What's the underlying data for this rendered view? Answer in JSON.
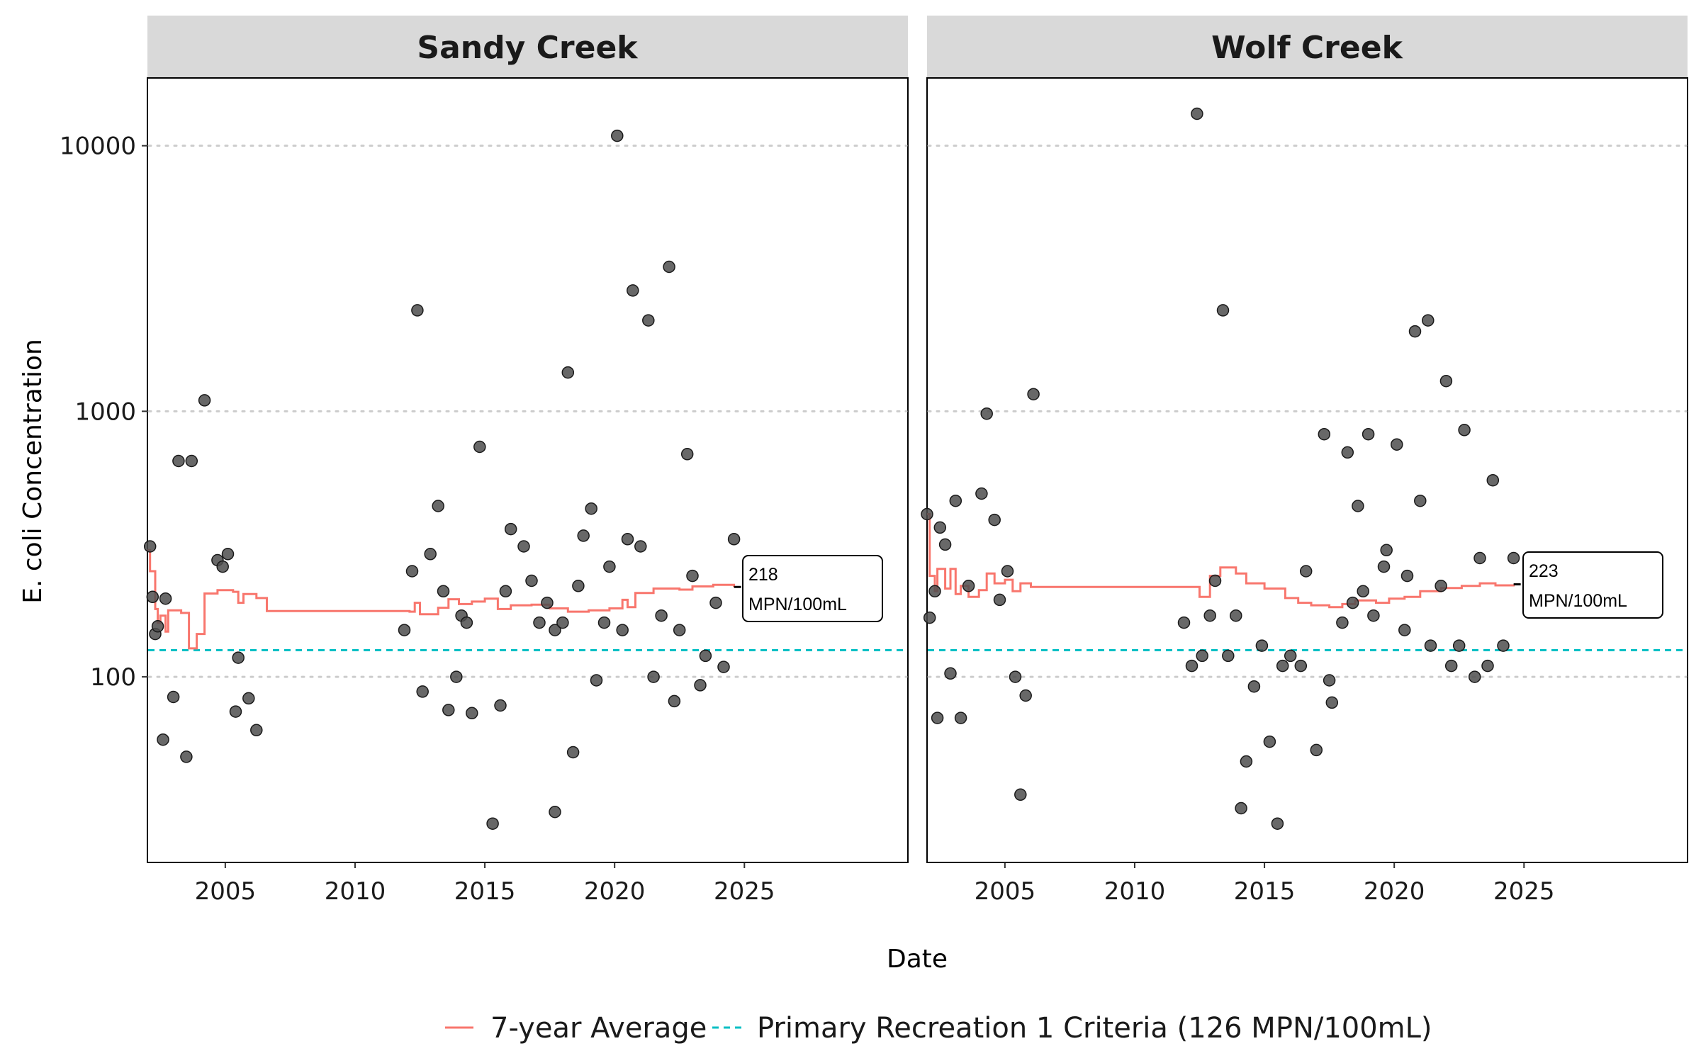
{
  "chart_data": {
    "type": "scatter",
    "xlabel": "Date",
    "ylabel": "E. coli Concentration",
    "y_scale": "log",
    "ylim": [
      20,
      18000
    ],
    "xlim": [
      2002.0,
      2031.3
    ],
    "x_ticks": [
      2005,
      2010,
      2015,
      2020,
      2025
    ],
    "y_ticks": [
      100,
      1000,
      10000
    ],
    "grid_y": true,
    "legend_position": "bottom",
    "legend": [
      {
        "label": "7-year Average",
        "style": "solid",
        "color": "#f8766d"
      },
      {
        "label": "Primary Recreation 1 Criteria (126 MPN/100mL)",
        "style": "dashed",
        "color": "#00bfc4"
      }
    ],
    "criteria_value": 126,
    "panels": [
      {
        "name": "Sandy Creek",
        "label_value": "218",
        "label_unit": "MPN/100mL",
        "label_date": 2024.6,
        "points": [
          [
            2002.1,
            310
          ],
          [
            2002.2,
            200
          ],
          [
            2002.3,
            145
          ],
          [
            2002.4,
            155
          ],
          [
            2002.6,
            58
          ],
          [
            2002.7,
            197
          ],
          [
            2003.0,
            84
          ],
          [
            2003.2,
            650
          ],
          [
            2003.5,
            50
          ],
          [
            2003.7,
            650
          ],
          [
            2004.2,
            1100
          ],
          [
            2004.7,
            275
          ],
          [
            2004.9,
            260
          ],
          [
            2005.1,
            290
          ],
          [
            2005.4,
            74
          ],
          [
            2005.5,
            118
          ],
          [
            2005.9,
            83
          ],
          [
            2006.2,
            63
          ],
          [
            2011.9,
            150
          ],
          [
            2012.2,
            250
          ],
          [
            2012.4,
            2400
          ],
          [
            2012.6,
            88
          ],
          [
            2012.9,
            290
          ],
          [
            2013.2,
            440
          ],
          [
            2013.4,
            210
          ],
          [
            2013.6,
            75
          ],
          [
            2013.9,
            100
          ],
          [
            2014.1,
            170
          ],
          [
            2014.3,
            160
          ],
          [
            2014.5,
            73
          ],
          [
            2014.8,
            735
          ],
          [
            2015.3,
            28
          ],
          [
            2015.6,
            78
          ],
          [
            2015.8,
            210
          ],
          [
            2016.0,
            360
          ],
          [
            2016.5,
            310
          ],
          [
            2016.8,
            230
          ],
          [
            2017.1,
            160
          ],
          [
            2017.4,
            190
          ],
          [
            2017.7,
            31
          ],
          [
            2017.7,
            150
          ],
          [
            2018.0,
            160
          ],
          [
            2018.2,
            1400
          ],
          [
            2018.4,
            52
          ],
          [
            2018.6,
            220
          ],
          [
            2018.8,
            340
          ],
          [
            2019.1,
            430
          ],
          [
            2019.3,
            97
          ],
          [
            2019.6,
            160
          ],
          [
            2019.8,
            260
          ],
          [
            2020.1,
            10900
          ],
          [
            2020.3,
            150
          ],
          [
            2020.5,
            330
          ],
          [
            2020.7,
            2850
          ],
          [
            2021.0,
            310
          ],
          [
            2021.3,
            2200
          ],
          [
            2021.5,
            100
          ],
          [
            2021.8,
            170
          ],
          [
            2022.1,
            3500
          ],
          [
            2022.3,
            81
          ],
          [
            2022.5,
            150
          ],
          [
            2022.8,
            690
          ],
          [
            2023.0,
            240
          ],
          [
            2023.3,
            93
          ],
          [
            2023.5,
            120
          ],
          [
            2023.9,
            190
          ],
          [
            2024.2,
            109
          ],
          [
            2024.6,
            330
          ]
        ],
        "average_steps": [
          [
            2002.0,
            300
          ],
          [
            2002.1,
            250
          ],
          [
            2002.3,
            180
          ],
          [
            2002.4,
            160
          ],
          [
            2002.5,
            170
          ],
          [
            2002.7,
            148
          ],
          [
            2002.8,
            178
          ],
          [
            2003.3,
            174
          ],
          [
            2003.6,
            128
          ],
          [
            2003.9,
            145
          ],
          [
            2004.2,
            206
          ],
          [
            2004.7,
            212
          ],
          [
            2005.3,
            209
          ],
          [
            2005.5,
            190
          ],
          [
            2005.7,
            205
          ],
          [
            2006.2,
            198
          ],
          [
            2006.6,
            177
          ],
          [
            2012.1,
            176
          ],
          [
            2012.3,
            190
          ],
          [
            2012.5,
            172
          ],
          [
            2013.2,
            182
          ],
          [
            2013.6,
            196
          ],
          [
            2014.0,
            188
          ],
          [
            2014.5,
            192
          ],
          [
            2015.0,
            197
          ],
          [
            2015.5,
            180
          ],
          [
            2016.0,
            186
          ],
          [
            2016.8,
            187
          ],
          [
            2017.5,
            181
          ],
          [
            2018.2,
            176
          ],
          [
            2019.0,
            178
          ],
          [
            2019.8,
            181
          ],
          [
            2020.3,
            195
          ],
          [
            2020.5,
            183
          ],
          [
            2020.8,
            207
          ],
          [
            2021.5,
            215
          ],
          [
            2022.5,
            213
          ],
          [
            2023.0,
            219
          ],
          [
            2023.8,
            222
          ],
          [
            2024.6,
            218
          ]
        ]
      },
      {
        "name": "Wolf Creek",
        "label_value": "223",
        "label_unit": "MPN/100mL",
        "label_date": 2024.6,
        "points": [
          [
            2002.0,
            410
          ],
          [
            2002.1,
            167
          ],
          [
            2002.3,
            210
          ],
          [
            2002.4,
            70
          ],
          [
            2002.5,
            365
          ],
          [
            2002.7,
            315
          ],
          [
            2002.9,
            103
          ],
          [
            2003.1,
            460
          ],
          [
            2003.3,
            70
          ],
          [
            2003.6,
            220
          ],
          [
            2004.1,
            490
          ],
          [
            2004.3,
            980
          ],
          [
            2004.6,
            390
          ],
          [
            2004.8,
            195
          ],
          [
            2005.1,
            250
          ],
          [
            2005.4,
            100
          ],
          [
            2005.6,
            36
          ],
          [
            2005.8,
            85
          ],
          [
            2006.1,
            1160
          ],
          [
            2011.9,
            160
          ],
          [
            2012.2,
            110
          ],
          [
            2012.4,
            13200
          ],
          [
            2012.6,
            120
          ],
          [
            2012.9,
            170
          ],
          [
            2013.1,
            230
          ],
          [
            2013.4,
            2400
          ],
          [
            2013.6,
            120
          ],
          [
            2013.9,
            170
          ],
          [
            2014.1,
            32
          ],
          [
            2014.3,
            48
          ],
          [
            2014.6,
            92
          ],
          [
            2014.9,
            131
          ],
          [
            2015.2,
            57
          ],
          [
            2015.5,
            28
          ],
          [
            2015.7,
            110
          ],
          [
            2016.0,
            120
          ],
          [
            2016.4,
            110
          ],
          [
            2016.6,
            250
          ],
          [
            2017.0,
            53
          ],
          [
            2017.3,
            820
          ],
          [
            2017.5,
            97
          ],
          [
            2017.6,
            80
          ],
          [
            2018.0,
            160
          ],
          [
            2018.2,
            700
          ],
          [
            2018.4,
            190
          ],
          [
            2018.6,
            440
          ],
          [
            2018.8,
            210
          ],
          [
            2019.0,
            820
          ],
          [
            2019.2,
            170
          ],
          [
            2019.6,
            260
          ],
          [
            2019.7,
            300
          ],
          [
            2020.1,
            750
          ],
          [
            2020.4,
            150
          ],
          [
            2020.5,
            240
          ],
          [
            2020.8,
            2000
          ],
          [
            2021.0,
            460
          ],
          [
            2021.3,
            2200
          ],
          [
            2021.4,
            131
          ],
          [
            2021.8,
            220
          ],
          [
            2022.0,
            1300
          ],
          [
            2022.2,
            110
          ],
          [
            2022.5,
            131
          ],
          [
            2022.7,
            850
          ],
          [
            2023.1,
            100
          ],
          [
            2023.3,
            280
          ],
          [
            2023.6,
            110
          ],
          [
            2023.8,
            550
          ],
          [
            2024.2,
            131
          ],
          [
            2024.6,
            280
          ]
        ],
        "average_steps": [
          [
            2002.0,
            410
          ],
          [
            2002.1,
            240
          ],
          [
            2002.3,
            210
          ],
          [
            2002.4,
            255
          ],
          [
            2002.7,
            215
          ],
          [
            2002.9,
            255
          ],
          [
            2003.1,
            205
          ],
          [
            2003.3,
            220
          ],
          [
            2003.6,
            200
          ],
          [
            2004.0,
            212
          ],
          [
            2004.3,
            245
          ],
          [
            2004.6,
            225
          ],
          [
            2005.0,
            232
          ],
          [
            2005.3,
            210
          ],
          [
            2005.6,
            225
          ],
          [
            2006.0,
            218
          ],
          [
            2011.9,
            218
          ],
          [
            2012.5,
            200
          ],
          [
            2012.9,
            240
          ],
          [
            2013.3,
            258
          ],
          [
            2013.9,
            245
          ],
          [
            2014.3,
            225
          ],
          [
            2015.0,
            215
          ],
          [
            2015.8,
            198
          ],
          [
            2016.3,
            190
          ],
          [
            2016.8,
            186
          ],
          [
            2017.5,
            183
          ],
          [
            2018.0,
            188
          ],
          [
            2018.5,
            194
          ],
          [
            2019.3,
            190
          ],
          [
            2019.8,
            197
          ],
          [
            2020.4,
            200
          ],
          [
            2021.0,
            210
          ],
          [
            2021.8,
            216
          ],
          [
            2022.6,
            220
          ],
          [
            2023.3,
            225
          ],
          [
            2023.9,
            221
          ],
          [
            2024.6,
            223
          ]
        ]
      }
    ]
  }
}
